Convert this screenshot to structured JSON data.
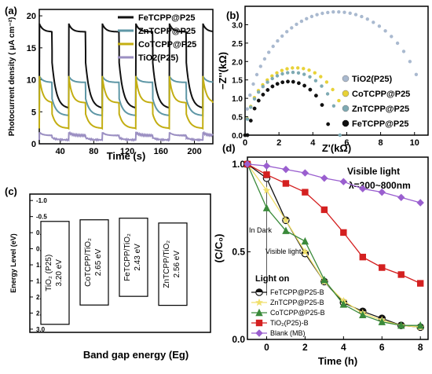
{
  "chart_data": [
    {
      "panel": "(a)",
      "type": "line",
      "xlabel": "Time (s)",
      "ylabel": "Photocurrent density ( μA cm⁻²)",
      "xlim": [
        15,
        222
      ],
      "ylim": [
        0,
        21
      ],
      "xticks": [
        "40",
        "80",
        "120",
        "160",
        "200"
      ],
      "yticks": [
        "0",
        "5",
        "10",
        "15",
        "20"
      ],
      "legend_position": "top-right",
      "series": [
        {
          "name": "FeTCPP@P25",
          "color": "#111111",
          "on": 17.5,
          "peak": 18.8,
          "off": 5.5
        },
        {
          "name": "ZnTCPP@P25",
          "color": "#5e97a6",
          "on": 9.6,
          "peak": 10.6,
          "off": 4.4
        },
        {
          "name": "CoTCPP@P25",
          "color": "#c3ae12",
          "on": 6.4,
          "peak": 10.6,
          "off": 2.4
        },
        {
          "name": "TiO2(P25)",
          "color": "#9b8fc2",
          "on": 1.3,
          "peak": 1.8,
          "off": 0.6
        }
      ],
      "light_on_intervals": [
        [
          15,
          30
        ],
        [
          50,
          70
        ],
        [
          90,
          110
        ],
        [
          130,
          150
        ],
        [
          170,
          190
        ],
        [
          210,
          222
        ]
      ]
    },
    {
      "panel": "(b)",
      "type": "scatter",
      "xlabel": "Z'(kΩ)",
      "ylabel": "−Z''(kΩ)",
      "xlim": [
        0,
        10.8
      ],
      "ylim": [
        0,
        3.5
      ],
      "xticks": [
        "0",
        "2",
        "4",
        "6",
        "8",
        "10"
      ],
      "yticks": [
        "0.0",
        "0.5",
        "1.0",
        "1.5",
        "2.0",
        "2.5",
        "3.0"
      ],
      "legend_position": "bottom-right",
      "series": [
        {
          "name": "TiO2(P25)",
          "color": "#a9b9cf",
          "center": 5.4,
          "radius": 5.4,
          "xmax": 10.1
        },
        {
          "name": "CoTCPP@P25",
          "color": "#e8d238",
          "center": 3.0,
          "radius": 2.95,
          "xmax": 5.9
        },
        {
          "name": "ZnTCPP@P25",
          "color": "#7eaab3",
          "center": 2.8,
          "radius": 2.75,
          "xmax": 5.6
        },
        {
          "name": "FeTCPP@P25",
          "color": "#111111",
          "center": 2.6,
          "radius": 2.35,
          "xmax": 4.9
        }
      ]
    },
    {
      "panel": "(c)",
      "type": "bar",
      "xlabel": "Band gap energy (Eg)",
      "ylabel": "Energy Level (eV)",
      "ylim": [
        -1.2,
        3.1
      ],
      "yticks": [
        "-1.0",
        "-0.5",
        "0.0",
        "0.5",
        "1.0",
        "1.5",
        "2.0",
        "2.5",
        "3.0"
      ],
      "bars": [
        {
          "name": "TiO₂ (P25)",
          "value_label": "3.20 eV",
          "top": -0.35,
          "bottom": 2.85
        },
        {
          "name": "CoTCPP/TiO₂",
          "value_label": "2.65 eV",
          "top": -0.4,
          "bottom": 2.25
        },
        {
          "name": "FeTCPP/TiO₂",
          "value_label": "2.43 eV",
          "top": -0.45,
          "bottom": 1.98
        },
        {
          "name": "ZnTCPP/TiO₂",
          "value_label": "2.56 eV",
          "top": -0.3,
          "bottom": 2.26
        }
      ]
    },
    {
      "panel": "(d)",
      "type": "line",
      "xlabel": "Time (h)",
      "ylabel": "(C/C₀)",
      "xlim": [
        -1,
        8.4
      ],
      "ylim": [
        0,
        1.04
      ],
      "xticks": [
        "0",
        "2",
        "4",
        "6",
        "8"
      ],
      "yticks": [
        "0.0",
        "0.5",
        "1.0"
      ],
      "legend_position": "bottom-left",
      "annotations": [
        "Visible light",
        "λ=300~800nm",
        "In Dark",
        "Visible light",
        "Light on"
      ],
      "series": [
        {
          "name": "FeTCPP@P25-B",
          "color": "#111111",
          "marker": "circle-half",
          "x": [
            -1,
            0,
            1,
            2,
            3,
            4,
            5,
            6,
            7,
            8
          ],
          "y": [
            1.0,
            0.92,
            0.68,
            0.49,
            0.33,
            0.21,
            0.16,
            0.12,
            0.08,
            0.07
          ]
        },
        {
          "name": "ZnTCPP@P25-B",
          "color": "#f0df6a",
          "marker": "star",
          "x": [
            -1,
            0,
            1,
            2,
            3,
            4,
            5,
            6,
            7,
            8
          ],
          "y": [
            1.0,
            0.85,
            0.68,
            0.5,
            0.33,
            0.22,
            0.15,
            0.11,
            0.08,
            0.07
          ]
        },
        {
          "name": "CoTCPP@P25-B",
          "color": "#3a8a3a",
          "marker": "triangle",
          "x": [
            -1,
            0,
            1,
            2,
            3,
            4,
            5,
            6,
            7,
            8
          ],
          "y": [
            1.0,
            0.75,
            0.62,
            0.56,
            0.34,
            0.2,
            0.14,
            0.1,
            0.08,
            0.08
          ]
        },
        {
          "name": "TiO₂(P25)-B",
          "color": "#d42020",
          "marker": "square",
          "x": [
            -1,
            0,
            1,
            2,
            3,
            4,
            5,
            6,
            7,
            8
          ],
          "y": [
            1.0,
            0.94,
            0.89,
            0.84,
            0.74,
            0.61,
            0.47,
            0.41,
            0.37,
            0.32
          ]
        },
        {
          "name": "Blank (MB)",
          "color": "#9a5fcf",
          "marker": "diamond",
          "x": [
            -1,
            0,
            1,
            2,
            3,
            4,
            5,
            6,
            7,
            8
          ],
          "y": [
            1.0,
            0.99,
            0.97,
            0.95,
            0.92,
            0.9,
            0.86,
            0.84,
            0.81,
            0.78
          ]
        }
      ]
    }
  ]
}
